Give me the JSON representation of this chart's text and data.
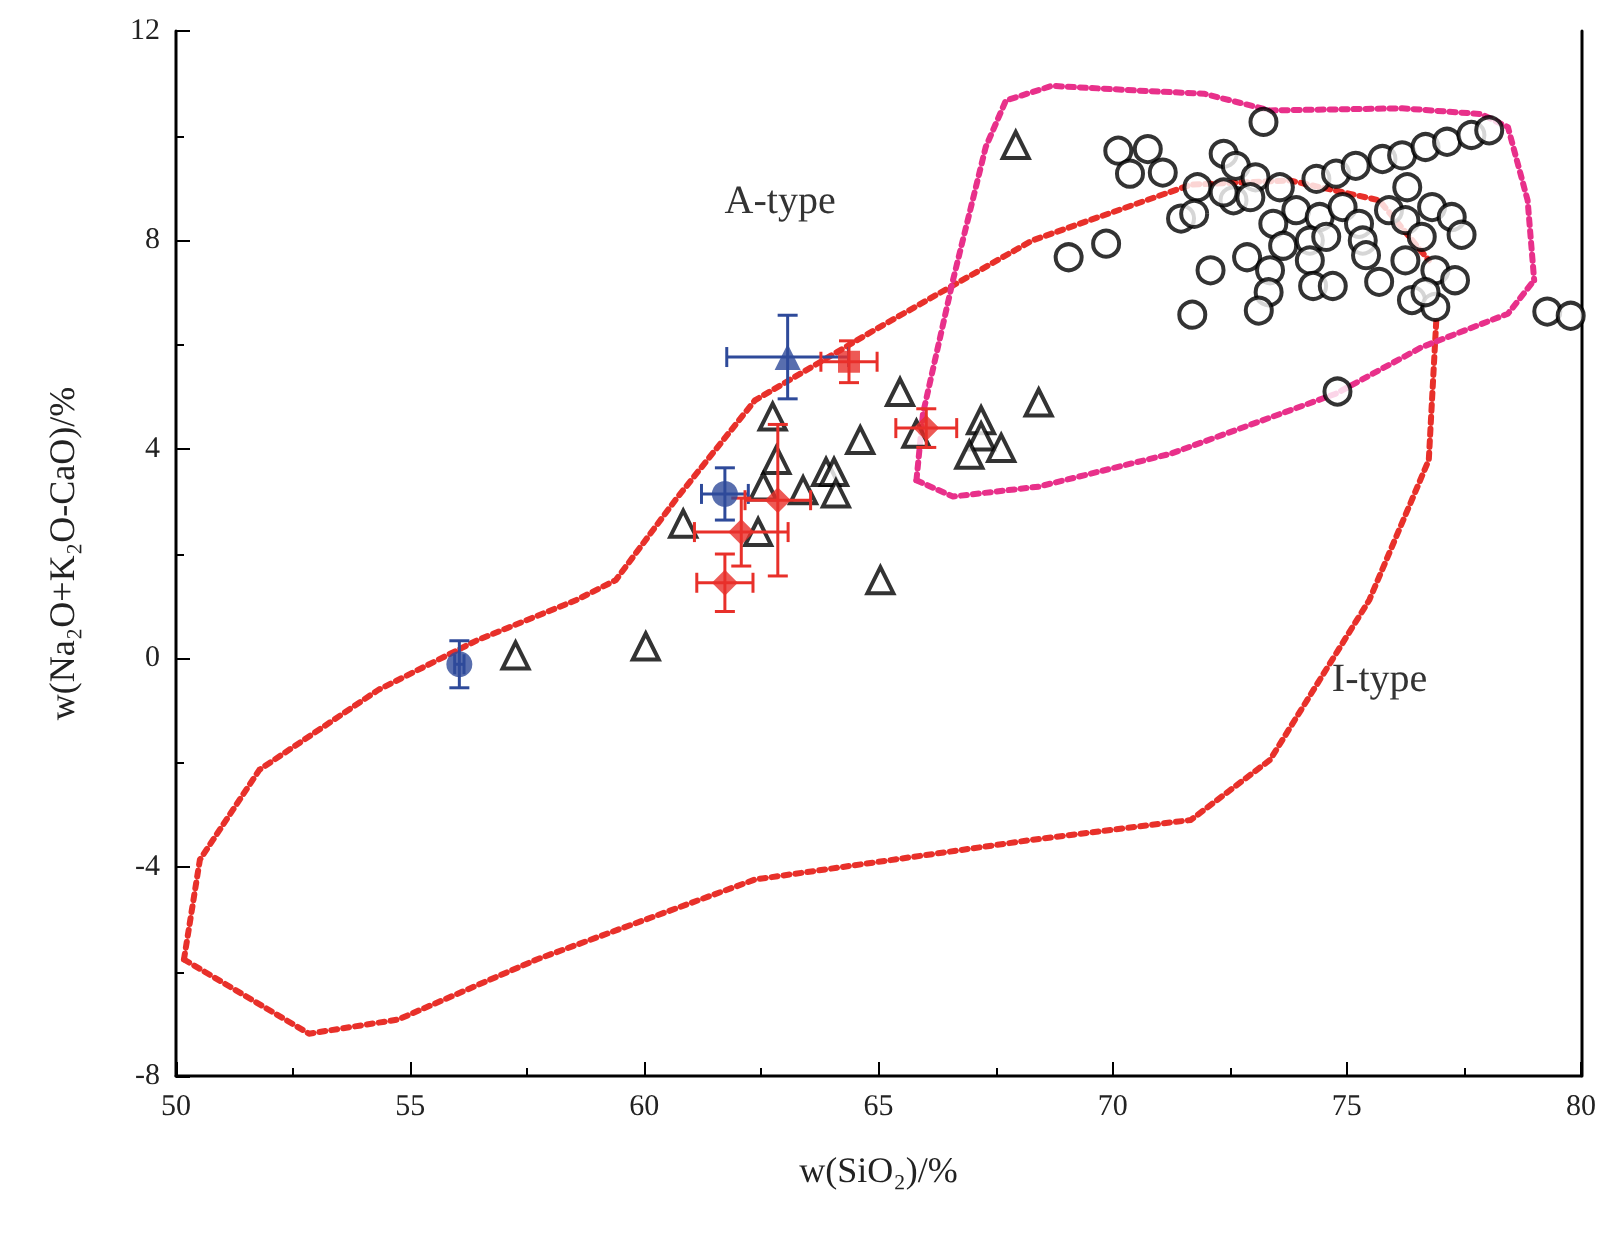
{
  "chart_data": {
    "type": "scatter",
    "xlabel": "w(SiO₂)/%",
    "ylabel": "w(Na₂O+K₂O-CaO)/%",
    "xlim": [
      50,
      80
    ],
    "ylim": [
      -8,
      12
    ],
    "xticks": [
      50,
      55,
      60,
      65,
      70,
      75,
      80
    ],
    "yticks": [
      -8,
      -4,
      0,
      4,
      8,
      12
    ],
    "grid": false,
    "annotations": [
      "A-type",
      "I-type"
    ],
    "series": [
      {
        "type": "line",
        "color": "#e8302a",
        "marker": "none",
        "line_style": "dotted",
        "x": [
          50.17,
          50.51,
          51.78,
          54.32,
          56.43,
          58.55,
          59.39,
          60.66,
          62.36,
          64.9,
          68.28,
          71.67,
          73.78,
          75.69,
          76.75
        ],
        "values": [
          -5.77,
          -3.86,
          -2.14,
          -0.61,
          0.34,
          1.11,
          1.49,
          3.02,
          4.93,
          6.27,
          7.99,
          9.06,
          9.14,
          8.76,
          7.61
        ]
      },
      {
        "type": "line",
        "color": "#e8302a",
        "marker": "none",
        "line_style": "dotted",
        "x": [
          50.17,
          52.84,
          54.74,
          57.7,
          62.36,
          68.28,
          71.67,
          73.36,
          75.48,
          76.75,
          76.91
        ],
        "values": [
          -5.77,
          -7.19,
          -6.92,
          -5.77,
          -4.24,
          -3.48,
          -3.1,
          -1.95,
          1.11,
          3.79,
          6.46
        ]
      },
      {
        "type": "line",
        "color": "#e8308a",
        "marker": "none",
        "line_style": "dotted",
        "x": [
          65.81,
          66.59,
          68.42,
          71.24,
          74.77,
          76.6,
          78.44,
          79.0
        ],
        "values": [
          3.4,
          3.09,
          3.28,
          3.91,
          5.06,
          5.95,
          6.59,
          7.23
        ]
      },
      {
        "type": "line",
        "color": "#e8308a",
        "marker": "none",
        "line_style": "dotted",
        "x": [
          65.81,
          65.95,
          66.59,
          67.29,
          67.72,
          68.7,
          70.54,
          71.95,
          73.36,
          76.18,
          77.87,
          78.44,
          78.86,
          79.0
        ],
        "values": [
          3.4,
          4.68,
          7.23,
          9.78,
          10.67,
          10.95,
          10.86,
          10.8,
          10.48,
          10.52,
          10.41,
          10.16,
          8.76,
          7.23
        ]
      },
      {
        "color": "#000000",
        "marker": "triangle",
        "x": [
          65.46,
          62.74,
          64.61,
          65.81,
          67.19,
          67.19,
          66.94,
          67.62,
          62.82,
          63.88,
          64.05,
          62.54,
          63.39,
          64.09,
          60.83,
          62.43,
          65.04,
          60.03,
          57.25,
          67.93,
          68.42
        ],
        "values": [
          5.09,
          4.62,
          4.17,
          4.29,
          4.55,
          4.24,
          3.89,
          4.02,
          3.79,
          3.56,
          3.56,
          3.28,
          3.21,
          3.15,
          2.57,
          2.41,
          1.49,
          0.22,
          0.05,
          9.82,
          4.89
        ]
      },
      {
        "color": "#000000",
        "marker": "circle",
        "x": [
          73.22,
          70.12,
          70.75,
          70.37,
          71.07,
          72.37,
          72.63,
          73.05,
          71.81,
          71.46,
          71.74,
          69.86,
          69.06,
          72.09,
          71.7,
          72.58,
          72.37,
          72.94,
          73.57,
          74.35,
          74.77,
          75.19,
          75.76,
          76.18,
          76.68,
          77.14,
          77.66,
          78.04,
          73.92,
          73.43,
          74.42,
          74.91,
          75.26,
          75.9,
          76.29,
          76.25,
          76.82,
          77.24,
          77.45,
          76.6,
          73.64,
          74.21,
          74.56,
          75.34,
          72.87,
          73.36,
          74.21,
          75.41,
          76.25,
          73.33,
          73.12,
          74.28,
          74.7,
          75.69,
          76.39,
          76.89,
          77.31,
          76.89,
          76.68,
          79.28,
          79.78,
          74.8
        ],
        "values": [
          10.26,
          9.71,
          9.74,
          9.27,
          9.29,
          9.65,
          9.42,
          9.2,
          9.01,
          8.41,
          8.5,
          7.93,
          7.67,
          7.42,
          6.57,
          8.76,
          8.91,
          8.82,
          9.01,
          9.17,
          9.27,
          9.42,
          9.55,
          9.62,
          9.78,
          9.88,
          10.01,
          10.1,
          8.57,
          8.31,
          8.44,
          8.63,
          8.31,
          8.57,
          9.01,
          8.38,
          8.63,
          8.44,
          8.1,
          8.06,
          7.89,
          7.99,
          8.06,
          7.99,
          7.67,
          7.42,
          7.61,
          7.71,
          7.61,
          7.0,
          6.65,
          7.12,
          7.12,
          7.2,
          6.85,
          7.42,
          7.23,
          6.72,
          7.0,
          6.63,
          6.55,
          5.1
        ]
      },
      {
        "color": "#2e4a9a",
        "marker": "circle",
        "x": [
          56.05,
          61.72
        ],
        "values": [
          -0.12,
          3.14
        ],
        "errors": [
          0.45,
          0.5
        ],
        "xerrors": [
          0.1,
          0.5
        ]
      },
      {
        "color": "#2e4a9a",
        "marker": "triangle",
        "x": [
          63.06
        ],
        "values": [
          5.76
        ],
        "errors": [
          0.8
        ],
        "xerrors": [
          1.3
        ]
      },
      {
        "color": "#e8302a",
        "marker": "square",
        "x": [
          64.37
        ],
        "values": [
          5.67
        ],
        "errors": [
          0.4
        ],
        "xerrors": [
          0.6
        ]
      },
      {
        "color": "#e8302a",
        "marker": "diamond",
        "x": [
          62.85,
          62.07,
          61.72,
          66.02
        ],
        "values": [
          3.02,
          2.41,
          1.44,
          4.4
        ],
        "errors": [
          1.45,
          0.65,
          0.55,
          0.37
        ],
        "xerrors": [
          0.7,
          1.0,
          0.6,
          0.65
        ]
      }
    ]
  }
}
